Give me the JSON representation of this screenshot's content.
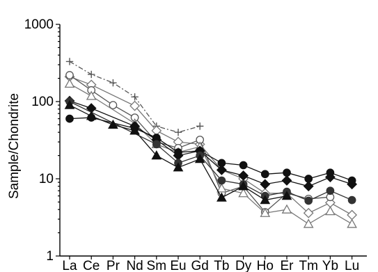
{
  "chart_data": {
    "type": "line",
    "title": "",
    "xlabel": "",
    "ylabel": "Sample/Chondrite",
    "yscale": "log",
    "ylim": [
      1,
      1000
    ],
    "yticks": [
      {
        "value": 1,
        "label": "1"
      },
      {
        "value": 10,
        "label": "10"
      },
      {
        "value": 100,
        "label": "100"
      },
      {
        "value": 1000,
        "label": "1000"
      }
    ],
    "grid": false,
    "legend": "none",
    "categories": [
      "La",
      "Ce",
      "Pr",
      "Nd",
      "Sm",
      "Eu",
      "Gd",
      "Tb",
      "Dy",
      "Ho",
      "Er",
      "Tm",
      "Yb",
      "Lu"
    ],
    "series": [
      {
        "marker": "plus",
        "dash": "dashdot",
        "color": "#555555",
        "values": [
          330,
          225,
          175,
          115,
          48,
          40,
          48,
          null,
          null,
          null,
          null,
          null,
          null,
          null
        ]
      },
      {
        "marker": "open-diamond",
        "dash": "solid",
        "color": "#777777",
        "values": [
          210,
          165,
          null,
          88,
          42,
          30,
          28,
          13,
          10,
          6.5,
          6.5,
          3.6,
          4.9,
          3.4
        ]
      },
      {
        "marker": "open-circle",
        "dash": "solid",
        "color": "#555555",
        "values": [
          220,
          140,
          90,
          62,
          30,
          25,
          32,
          6.5,
          8,
          3.7,
          6.5,
          5.5,
          5.8,
          null
        ]
      },
      {
        "marker": "open-triangle",
        "dash": "solid",
        "color": "#777777",
        "values": [
          170,
          118,
          null,
          52,
          28,
          22,
          26,
          7.5,
          6.5,
          3.6,
          4,
          2.6,
          3.8,
          2.6
        ]
      },
      {
        "marker": "filled-diamond",
        "dash": "solid",
        "color": "#111111",
        "values": [
          102,
          82,
          null,
          48,
          32,
          20,
          23,
          13,
          11,
          8.5,
          9.5,
          8,
          10.5,
          8.5
        ]
      },
      {
        "marker": "filled-circle",
        "dash": "solid",
        "color": "#111111",
        "values": [
          60,
          62,
          null,
          45,
          34,
          22,
          23,
          16,
          15,
          11.5,
          12,
          10,
          12,
          9.5
        ]
      },
      {
        "marker": "filled-circle",
        "dash": "solid",
        "color": "#333333",
        "values": [
          100,
          null,
          null,
          null,
          28,
          16,
          20,
          9.5,
          8.5,
          6,
          6.8,
          5.2,
          7,
          5.3
        ]
      },
      {
        "marker": "filled-triangle",
        "dash": "solid",
        "color": "#111111",
        "values": [
          90,
          65,
          50,
          42,
          20,
          14,
          18,
          5.7,
          8,
          5.3,
          6,
          null,
          null,
          null
        ]
      }
    ]
  }
}
